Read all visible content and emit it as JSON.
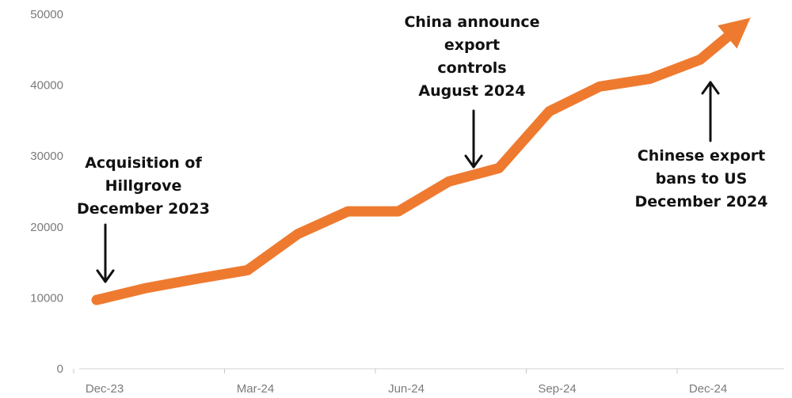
{
  "chart_data": {
    "type": "line",
    "x": [
      "Dec-23",
      "Jan-24",
      "Feb-24",
      "Mar-24",
      "Apr-24",
      "May-24",
      "Jun-24",
      "Jul-24",
      "Aug-24",
      "Sep-24",
      "Oct-24",
      "Nov-24",
      "Dec-24",
      "Jan-25"
    ],
    "series": [
      {
        "values": [
          9700,
          11400,
          12700,
          13900,
          19000,
          22200,
          22200,
          26400,
          28300,
          36300,
          39800,
          40900,
          43600,
          49500
        ]
      }
    ],
    "x_ticks": [
      "Dec-23",
      "Mar-24",
      "Jun-24",
      "Sep-24",
      "Dec-24"
    ],
    "y_ticks": [
      "0",
      "10000",
      "20000",
      "30000",
      "40000",
      "50000"
    ],
    "ylim": [
      0,
      50000
    ],
    "line_color": "#EE7A30",
    "grid": false,
    "annotations": [
      {
        "lines": [
          "Acquisition of",
          "Hillgrove",
          "December 2023"
        ],
        "x": "Dec-23",
        "arrow": "down"
      },
      {
        "lines": [
          "China announce",
          "export",
          "controls",
          "August 2024"
        ],
        "x": "Aug-24",
        "arrow": "down"
      },
      {
        "lines": [
          "Chinese export",
          "bans to US",
          "December 2024"
        ],
        "x": "Dec-24",
        "arrow": "up"
      }
    ]
  }
}
